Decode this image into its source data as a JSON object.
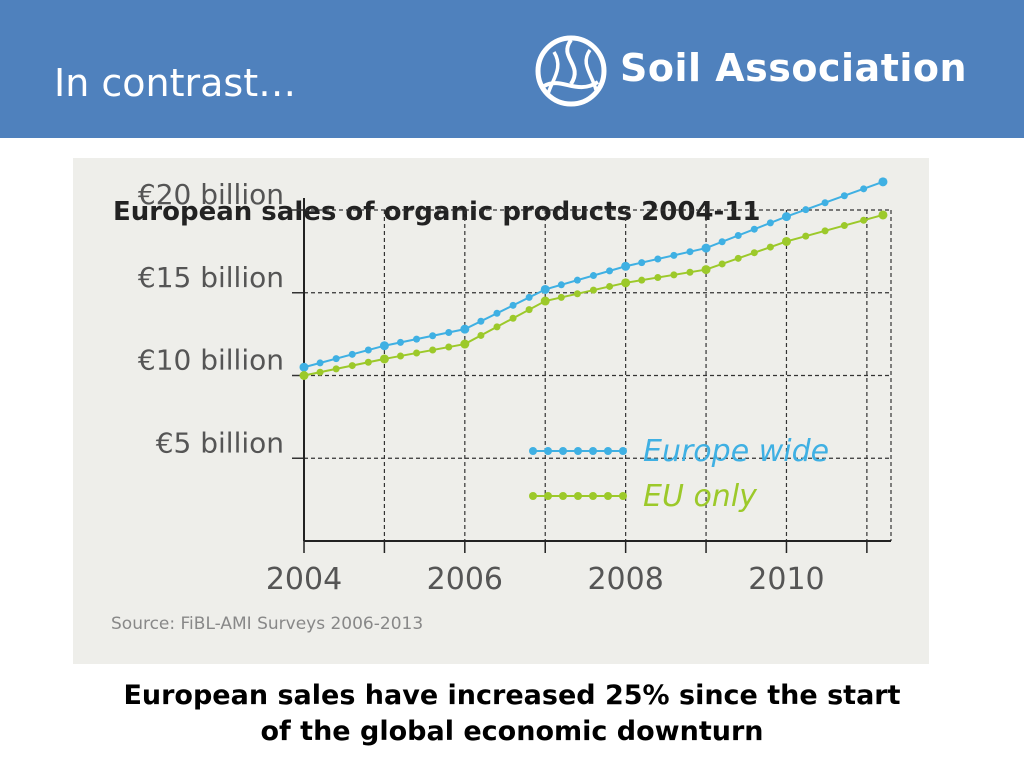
{
  "slide": {
    "title": "In contrast…",
    "caption_line1": "European sales have increased 25% since the start",
    "caption_line2": "of the global economic downturn"
  },
  "logo": {
    "text": "Soil Association",
    "icon": "soil-association-mark-icon"
  },
  "colors": {
    "header": "#4f81bd",
    "panel": "#eeeeea",
    "europe_wide": "#3fb0e3",
    "eu_only": "#9cc92a"
  },
  "chart_data": {
    "type": "line",
    "title": "European sales of organic products 2004-11",
    "source": "Source: FiBL-AMI Surveys 2006-2013",
    "xlabel": "",
    "ylabel": "",
    "xlim": [
      2004,
      2011.3
    ],
    "ylim": [
      0,
      20
    ],
    "x_ticks": [
      2004,
      2006,
      2008,
      2010
    ],
    "x_tick_labels": [
      "2004",
      "2006",
      "2008",
      "2010"
    ],
    "y_ticks": [
      5,
      10,
      15,
      20
    ],
    "y_tick_labels": [
      "€5 billion",
      "€10 billion",
      "€15 billion",
      "€20 billion"
    ],
    "grid": true,
    "legend_position": "center-right",
    "x": [
      2004,
      2005,
      2006,
      2007,
      2008,
      2009,
      2010,
      2011.2
    ],
    "series": [
      {
        "name": "Europe wide",
        "values": [
          10.5,
          11.8,
          12.8,
          15.2,
          16.6,
          17.7,
          19.6,
          21.7
        ]
      },
      {
        "name": "EU only",
        "values": [
          10.0,
          11.0,
          11.9,
          14.5,
          15.6,
          16.4,
          18.1,
          19.7
        ]
      }
    ]
  }
}
